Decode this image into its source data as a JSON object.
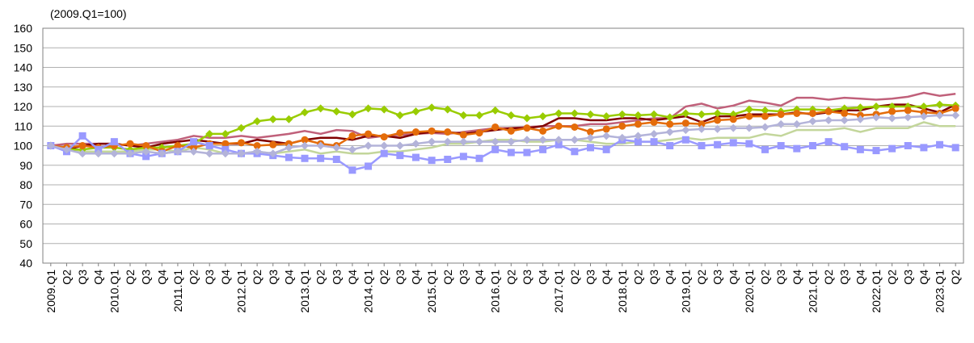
{
  "chart_data": {
    "type": "line",
    "subtitle": "(2009.Q1=100)",
    "categories": [
      "2009.Q1",
      "Q2",
      "Q3",
      "Q4",
      "2010.Q1",
      "Q2",
      "Q3",
      "Q4",
      "2011.Q1",
      "Q2",
      "Q3",
      "Q4",
      "2012.Q1",
      "Q2",
      "Q3",
      "Q4",
      "2013.Q1",
      "Q2",
      "Q3",
      "Q4",
      "2014.Q1",
      "Q2",
      "Q3",
      "Q4",
      "2015.Q1",
      "Q2",
      "Q3",
      "Q4",
      "2016.Q1",
      "Q2",
      "Q3",
      "Q4",
      "2017.Q1",
      "Q2",
      "Q3",
      "Q4",
      "2018.Q1",
      "Q2",
      "Q3",
      "Q4",
      "2019.Q1",
      "Q2",
      "Q3",
      "Q4",
      "2020.Q1",
      "Q2",
      "Q3",
      "Q4",
      "2021.Q1",
      "Q2",
      "Q3",
      "Q4",
      "2022.Q1",
      "Q2",
      "Q3",
      "Q4",
      "2023.Q1",
      "Q2"
    ],
    "series": [
      {
        "color": "#c3d69b",
        "marker": "none",
        "values": [
          100,
          98,
          97,
          97,
          97,
          97,
          98,
          98,
          97,
          99,
          98,
          96,
          96,
          97,
          96,
          97,
          98,
          96,
          97,
          96,
          96,
          97,
          97,
          98,
          99,
          101,
          101,
          102,
          103,
          103,
          102,
          102,
          103,
          103,
          102,
          101,
          101,
          102,
          102,
          103,
          104,
          103,
          104,
          104,
          104,
          106,
          105,
          108,
          108,
          108,
          109,
          107,
          109,
          109,
          109,
          112,
          110,
          110
        ]
      },
      {
        "color": "#c0607a",
        "marker": "none",
        "values": [
          100,
          101,
          101,
          101,
          101,
          100,
          101,
          102,
          103,
          105,
          104,
          104,
          105,
          104,
          105,
          106,
          107.5,
          106,
          108,
          107.5,
          104,
          105,
          105.5,
          106,
          106.5,
          106,
          107,
          108,
          109,
          109,
          109.5,
          110,
          110,
          110,
          111,
          111,
          112,
          113,
          114,
          114,
          120,
          121.5,
          119,
          120.5,
          123,
          122,
          120.5,
          124.5,
          124.5,
          123.5,
          124.5,
          124,
          123.5,
          124,
          125,
          127,
          125.5,
          126.5
        ]
      },
      {
        "color": "#800000",
        "marker": "none",
        "values": [
          100,
          98,
          100,
          101,
          101,
          100,
          99,
          101,
          102,
          103,
          102,
          101,
          101,
          103,
          102,
          101,
          103,
          104,
          104,
          103,
          105,
          105,
          104,
          106,
          107,
          107,
          106,
          107,
          108,
          109,
          109,
          110,
          114,
          114,
          113,
          113,
          114,
          114,
          113,
          114,
          115,
          112,
          115,
          115,
          116,
          116,
          116,
          117,
          116,
          117,
          118,
          118,
          120,
          121,
          121,
          119,
          117,
          121
        ]
      },
      {
        "color": "#99cc00",
        "marker": "diamond",
        "values": [
          100,
          98,
          98,
          99,
          99,
          98,
          99,
          99,
          100,
          101,
          106,
          106,
          109,
          112.5,
          113.5,
          113.5,
          117,
          119,
          117.5,
          116,
          119,
          118.5,
          115.5,
          117.5,
          119.5,
          118.5,
          115.5,
          115.5,
          118,
          115.5,
          114,
          115,
          116.5,
          116.5,
          116,
          115,
          116,
          115.5,
          116,
          114.5,
          116.5,
          116,
          116.5,
          116,
          118.5,
          118,
          117.5,
          118.5,
          118.5,
          118,
          119,
          119.5,
          120,
          120,
          120,
          120,
          121,
          120.5
        ]
      },
      {
        "color": "#e46c0a",
        "marker": "circle",
        "values": [
          100,
          99,
          100,
          99,
          100,
          101,
          100,
          97,
          100,
          99,
          101,
          101,
          101.5,
          100,
          100.5,
          101,
          103,
          101,
          100,
          105,
          106,
          104.5,
          106.5,
          107,
          107.5,
          107,
          105.5,
          106.5,
          109.5,
          107.5,
          109,
          107.5,
          110,
          109.5,
          107,
          108.5,
          110,
          111,
          112,
          111,
          111.5,
          111,
          113,
          113.5,
          115,
          115,
          116,
          116.5,
          116.5,
          117.5,
          116.5,
          115.5,
          116,
          117.5,
          118,
          117,
          116.5,
          119
        ]
      },
      {
        "color": "#9999ff",
        "marker": "square",
        "values": [
          100,
          97,
          105,
          98,
          102,
          96,
          94.5,
          96,
          97,
          102,
          100,
          98,
          96,
          96,
          95,
          94,
          93.5,
          93.5,
          93,
          87.5,
          89.5,
          96,
          95,
          94,
          92.5,
          93,
          94.5,
          93.5,
          98,
          96.5,
          96.5,
          98,
          100.5,
          97,
          99,
          98,
          103,
          102,
          102,
          100,
          103,
          100,
          100.5,
          101.5,
          101,
          98,
          100,
          98.5,
          100,
          102,
          99.5,
          98,
          97.5,
          98.5,
          100,
          99,
          100.5,
          99
        ]
      },
      {
        "color": "#b3b3d9",
        "marker": "diamond",
        "values": [
          100,
          98,
          96,
          96,
          96,
          96,
          97,
          96,
          97,
          97,
          96,
          96,
          96,
          97,
          96,
          99,
          100,
          100,
          99,
          98,
          100,
          100,
          100,
          101,
          102,
          102,
          102,
          102,
          102,
          102,
          103,
          103,
          103,
          103,
          104,
          105,
          104,
          105,
          106,
          107,
          108,
          108.5,
          108.5,
          109,
          109,
          109.5,
          111,
          111,
          112.5,
          113,
          113,
          113.5,
          114.5,
          114,
          114.5,
          115,
          115.5,
          115.5
        ]
      }
    ],
    "ylim": [
      40,
      160
    ],
    "yticks": [
      40,
      50,
      60,
      70,
      80,
      90,
      100,
      110,
      120,
      130,
      140,
      150,
      160
    ],
    "grid": true
  }
}
